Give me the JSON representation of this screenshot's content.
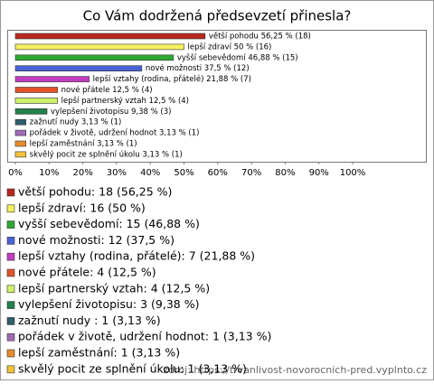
{
  "chart_data": {
    "type": "bar",
    "orientation": "horizontal",
    "title": "Co Vám dodržená předsevzetí přinesla?",
    "categories": [
      "větší pohodu",
      "lepší zdraví",
      "vyšší sebevědomí",
      "nové možnosti",
      "lepší vztahy (rodina, přátelé)",
      "nové přátele",
      "lepší partnerský vztah",
      "vylepšení životopisu",
      "zažnutí nudy ",
      "pořádek v životě, udržení hodnot",
      "lepší zaměstnání",
      "skvělý pocit ze splnění úkolu"
    ],
    "values": [
      56.25,
      50,
      46.88,
      37.5,
      21.88,
      12.5,
      12.5,
      9.38,
      3.13,
      3.13,
      3.13,
      3.13
    ],
    "value_labels": [
      "větší pohodu 56,25 % (18)",
      "lepší zdraví 50 % (16)",
      "vyšší sebevědomí 46,88 % (15)",
      "nové možnosti 37,5 % (12)",
      "lepší vztahy (rodina, přátelé) 21,88 % (7)",
      "nové přátele 12,5 % (4)",
      "lepší partnerský vztah 12,5 % (4)",
      "vylepšení životopisu 9,38 % (3)",
      "zažnutí nudy  3,13 % (1)",
      "pořádek v životě, udržení hodnot 3,13 % (1)",
      "lepší zaměstnání 3,13 % (1)",
      "skvělý pocit ze splnění úkolu 3,13 % (1)"
    ],
    "colors": [
      "#b8281e",
      "#f5f060",
      "#2fa834",
      "#4a63d8",
      "#c23cc2",
      "#e2532a",
      "#cdf26a",
      "#22804a",
      "#2e5f6c",
      "#a06ab4",
      "#e88a2e",
      "#f2c23a"
    ],
    "legend": [
      "větší pohodu: 18 (56,25 %)",
      "lepší zdraví: 16 (50 %)",
      "vyšší sebevědomí: 15 (46,88 %)",
      "nové možnosti: 12 (37,5 %)",
      "lepší vztahy (rodina, přátelé): 7 (21,88 %)",
      "nové přátele: 4 (12,5 %)",
      "lepší partnerský vztah: 4 (12,5 %)",
      "vylepšení životopisu: 3 (9,38 %)",
      "zažnutí nudy : 1 (3,13 %)",
      "pořádek v životě, udržení hodnot: 1 (3,13 %)",
      "lepší zaměstnání: 1 (3,13 %)",
      "skvělý pocit ze splnění úkolu: 1 (3,13 %)"
    ],
    "xlim": [
      0,
      100
    ],
    "xticks": [
      {
        "value": 0,
        "label": "0%"
      },
      {
        "value": 10,
        "label": "10%"
      },
      {
        "value": 20,
        "label": "20%"
      },
      {
        "value": 30,
        "label": "30%"
      },
      {
        "value": 40,
        "label": "40%"
      },
      {
        "value": 50,
        "label": "50%"
      },
      {
        "value": 60,
        "label": "60%"
      },
      {
        "value": 70,
        "label": "70%"
      },
      {
        "value": 80,
        "label": "80%"
      },
      {
        "value": 90,
        "label": "90%"
      },
      {
        "value": 100,
        "label": "100%"
      }
    ],
    "source": "zdroj: https://trvanlivost-novorocnich-pred.vyplnto.cz"
  }
}
